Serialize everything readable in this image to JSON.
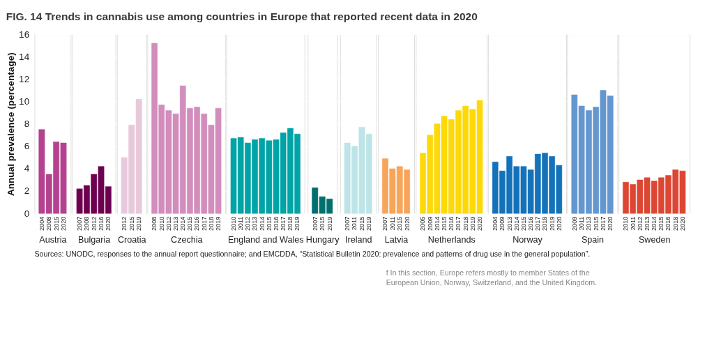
{
  "chart_data": [
    {
      "type": "bar",
      "title": "FIG. 14  Trends in cannabis use among countries in Europe that reported recent data in 2020",
      "ylabel": "Annual prevalence (percentage)",
      "xlabel": "Austria",
      "categories": [
        "2004",
        "2008",
        "2015",
        "2020"
      ],
      "values": [
        7.5,
        3.5,
        6.4,
        6.3
      ],
      "color": "#b5428f",
      "ylim": [
        0,
        16
      ],
      "yticks": [
        0,
        2,
        4,
        6,
        8,
        10,
        12,
        14,
        16
      ],
      "grid": "y",
      "annotations": [
        "Sources: UNODC, responses to the annual report questionnaire; and EMCDDA, “Statistical Bulletin 2020: prevalence and patterns of drug use in the general population”.",
        "f      In this section, Europe refers mostly to member States of the European Union, Norway, Switzerland, and the United Kingdom."
      ]
    },
    {
      "type": "bar",
      "xlabel": "Bulgaria",
      "categories": [
        "2007",
        "2008",
        "2012",
        "2016",
        "2020"
      ],
      "values": [
        2.2,
        2.5,
        3.5,
        4.2,
        2.4
      ],
      "color": "#6e0050",
      "ylim": [
        0,
        16
      ],
      "yticks": [
        0,
        2,
        4,
        6,
        8,
        10,
        12,
        14,
        16
      ],
      "grid": "y",
      "tick_labels": "x"
    },
    {
      "type": "bar",
      "xlabel": "Croatia",
      "categories": [
        "2012",
        "2015",
        "2019"
      ],
      "values": [
        5.0,
        7.9,
        10.2
      ],
      "color": "#e8c9dc",
      "ylim": [
        0,
        16
      ],
      "yticks": [
        0,
        2,
        4,
        6,
        8,
        10,
        12,
        14,
        16
      ],
      "grid": "y",
      "tick_labels": "x"
    },
    {
      "type": "bar",
      "xlabel": "Czechia",
      "categories": [
        "2008",
        "2010",
        "2012",
        "2013",
        "2014",
        "2015",
        "2016",
        "2017",
        "2018",
        "2019"
      ],
      "values": [
        15.2,
        9.7,
        9.2,
        8.9,
        11.4,
        9.4,
        9.5,
        8.9,
        7.9,
        9.4
      ],
      "color": "#d28dbd",
      "ylim": [
        0,
        16
      ],
      "yticks": [
        0,
        2,
        4,
        6,
        8,
        10,
        12,
        14,
        16
      ],
      "grid": "y",
      "tick_labels": "x"
    },
    {
      "type": "bar",
      "xlabel": "England and Wales",
      "categories": [
        "2010",
        "2011",
        "2012",
        "2013",
        "2014",
        "2015",
        "2016",
        "2017",
        "2018",
        "2019"
      ],
      "values": [
        6.7,
        6.8,
        6.3,
        6.6,
        6.7,
        6.5,
        6.6,
        7.2,
        7.6,
        7.1
      ],
      "color": "#00a3a6",
      "ylim": [
        0,
        16
      ],
      "yticks": [
        0,
        2,
        4,
        6,
        8,
        10,
        12,
        14,
        16
      ],
      "grid": "y",
      "tick_labels": "x"
    },
    {
      "type": "bar",
      "xlabel": "Hungary",
      "categories": [
        "2007",
        "2015",
        "2019"
      ],
      "values": [
        2.3,
        1.5,
        1.3
      ],
      "color": "#00706e",
      "ylim": [
        0,
        16
      ],
      "yticks": [
        0,
        2,
        4,
        6,
        8,
        10,
        12,
        14,
        16
      ],
      "grid": "y",
      "tick_labels": "x"
    },
    {
      "type": "bar",
      "xlabel": "Ireland",
      "categories": [
        "2007",
        "2011",
        "2015",
        "2019"
      ],
      "values": [
        6.3,
        6.0,
        7.7,
        7.1
      ],
      "color": "#bde4e6",
      "ylim": [
        0,
        16
      ],
      "yticks": [
        0,
        2,
        4,
        6,
        8,
        10,
        12,
        14,
        16
      ],
      "grid": "y",
      "tick_labels": "x"
    },
    {
      "type": "bar",
      "xlabel": "Latvia",
      "categories": [
        "2007",
        "2011",
        "2015",
        "2020"
      ],
      "values": [
        4.9,
        4.0,
        4.2,
        3.9
      ],
      "color": "#f6a55a",
      "ylim": [
        0,
        16
      ],
      "yticks": [
        0,
        2,
        4,
        6,
        8,
        10,
        12,
        14,
        16
      ],
      "grid": "y",
      "tick_labels": "x"
    },
    {
      "type": "bar",
      "xlabel": "Netherlands",
      "categories": [
        "2005",
        "2009",
        "2014",
        "2015",
        "2016",
        "2017",
        "2018",
        "2019",
        "2020"
      ],
      "values": [
        5.4,
        7.0,
        8.0,
        8.7,
        8.4,
        9.2,
        9.6,
        9.3,
        10.1
      ],
      "color": "#fdd90a",
      "ylim": [
        0,
        16
      ],
      "yticks": [
        0,
        2,
        4,
        6,
        8,
        10,
        12,
        14,
        16
      ],
      "grid": "y",
      "tick_labels": "x"
    },
    {
      "type": "bar",
      "xlabel": "Norway",
      "categories": [
        "2004",
        "2009",
        "2013",
        "2014",
        "2015",
        "2016",
        "2017",
        "2018",
        "2019",
        "2020"
      ],
      "values": [
        4.6,
        3.8,
        5.1,
        4.2,
        4.2,
        3.9,
        5.3,
        5.4,
        5.1,
        4.3
      ],
      "color": "#1372b9",
      "ylim": [
        0,
        16
      ],
      "yticks": [
        0,
        2,
        4,
        6,
        8,
        10,
        12,
        14,
        16
      ],
      "grid": "y",
      "tick_labels": "x"
    },
    {
      "type": "bar",
      "xlabel": "Spain",
      "categories": [
        "2009",
        "2011",
        "2013",
        "2015",
        "2017",
        "2020"
      ],
      "values": [
        10.6,
        9.6,
        9.2,
        9.5,
        11.0,
        10.5
      ],
      "color": "#6497d0",
      "ylim": [
        0,
        16
      ],
      "yticks": [
        0,
        2,
        4,
        6,
        8,
        10,
        12,
        14,
        16
      ],
      "grid": "y",
      "tick_labels": "x"
    },
    {
      "type": "bar",
      "xlabel": "Sweden",
      "categories": [
        "2010",
        "2011",
        "2012",
        "2013",
        "2014",
        "2015",
        "2016",
        "2018",
        "2020"
      ],
      "values": [
        2.8,
        2.6,
        3.0,
        3.2,
        2.9,
        3.2,
        3.4,
        3.9,
        3.8
      ],
      "color": "#dd4633",
      "ylim": [
        0,
        16
      ],
      "yticks": [
        0,
        2,
        4,
        6,
        8,
        10,
        12,
        14,
        16
      ],
      "grid": "y",
      "tick_labels": "x"
    }
  ]
}
